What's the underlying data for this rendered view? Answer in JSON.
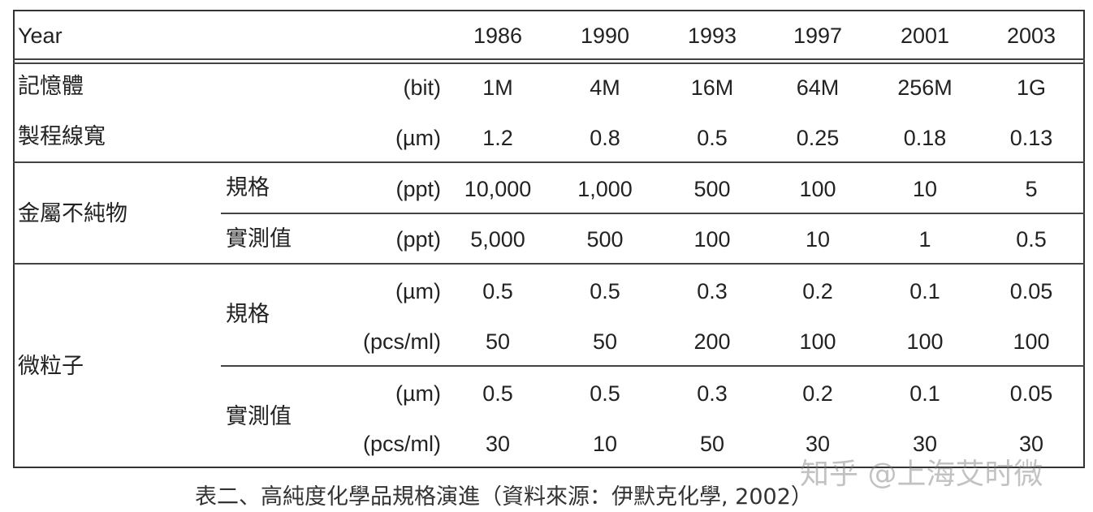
{
  "table": {
    "header": {
      "label": "Year",
      "years": [
        "1986",
        "1990",
        "1993",
        "1997",
        "2001",
        "2003"
      ]
    },
    "memory": {
      "label": "記憶體",
      "unit": "(bit)",
      "values": [
        "1M",
        "4M",
        "16M",
        "64M",
        "256M",
        "1G"
      ]
    },
    "linewidth": {
      "label": "製程線寬",
      "unit": "(µm)",
      "values": [
        "1.2",
        "0.8",
        "0.5",
        "0.25",
        "0.18",
        "0.13"
      ]
    },
    "metal": {
      "label": "金屬不純物",
      "spec": {
        "label": "規格",
        "unit": "(ppt)",
        "values": [
          "10,000",
          "1,000",
          "500",
          "100",
          "10",
          "5"
        ]
      },
      "measured": {
        "label": "實測值",
        "unit": "(ppt)",
        "values": [
          "5,000",
          "500",
          "100",
          "10",
          "1",
          "0.5"
        ]
      }
    },
    "particle": {
      "label": "微粒子",
      "spec": {
        "label": "規格",
        "size": {
          "unit": "(µm)",
          "values": [
            "0.5",
            "0.5",
            "0.3",
            "0.2",
            "0.1",
            "0.05"
          ]
        },
        "count": {
          "unit": "(pcs/ml)",
          "values": [
            "50",
            "50",
            "200",
            "100",
            "100",
            "100"
          ]
        }
      },
      "measured": {
        "label": "實測值",
        "size": {
          "unit": "(µm)",
          "values": [
            "0.5",
            "0.5",
            "0.3",
            "0.2",
            "0.1",
            "0.05"
          ]
        },
        "count": {
          "unit": "(pcs/ml)",
          "values": [
            "30",
            "10",
            "50",
            "30",
            "30",
            "30"
          ]
        }
      }
    }
  },
  "caption": "表二、高純度化學品規格演進（資料來源：伊默克化學, 2002）",
  "watermark": "知乎 @上海艾时微"
}
